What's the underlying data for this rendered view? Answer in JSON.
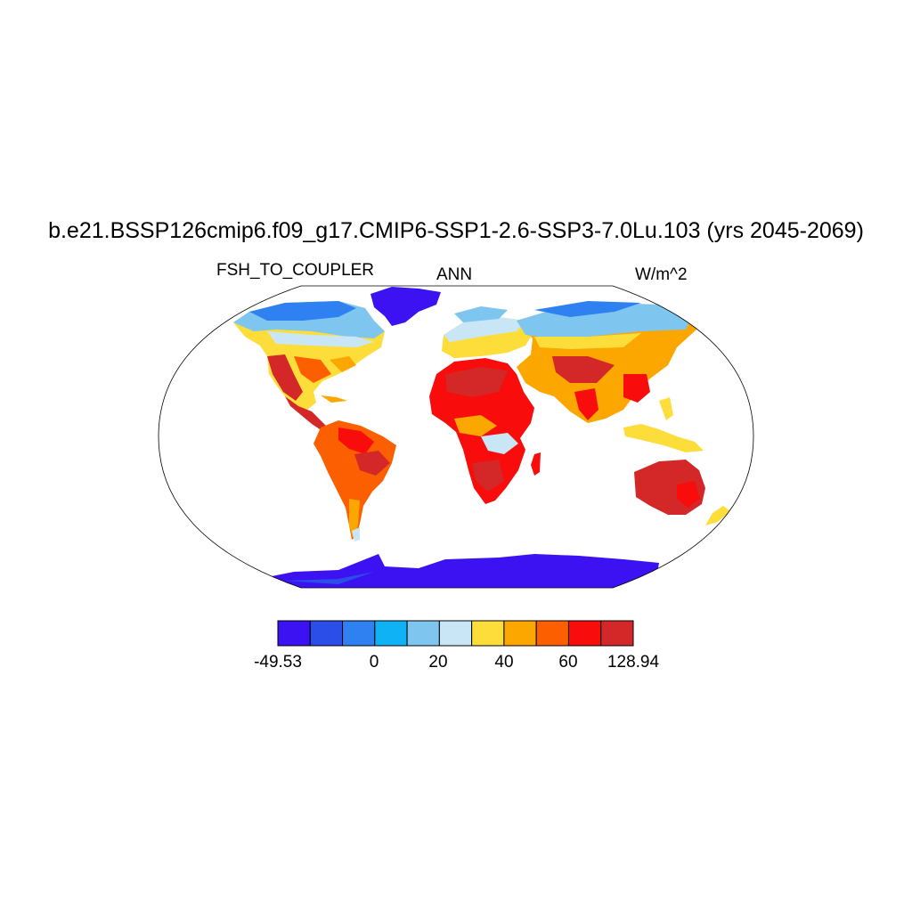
{
  "title": "b.e21.BSSP126cmip6.f09_g17.CMIP6-SSP1-2.6-SSP3-7.0Lu.103 (yrs 2045-2069)",
  "left_string": "FSH_TO_COUPLER",
  "center_string": "ANN",
  "right_string": "W/m^2",
  "colorbar": {
    "colors": [
      "#3d12f2",
      "#2b4de8",
      "#2f80f0",
      "#10b2f6",
      "#7ec6ef",
      "#c8e6f6",
      "#fddd3a",
      "#fca600",
      "#fc5f00",
      "#f80c0c",
      "#d42828"
    ],
    "min_label": "-49.53",
    "max_label": "128.94",
    "tick_labels": [
      "0",
      "20",
      "40",
      "60"
    ]
  }
}
